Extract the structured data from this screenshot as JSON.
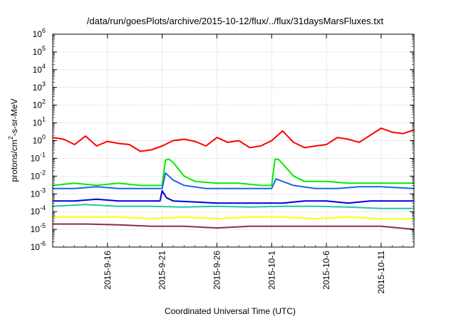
{
  "page": {
    "title": "/data/run/goesPlots/archive/2015-10-12/flux/../flux/31daysMarsFluxes.txt"
  },
  "chart_data": {
    "type": "line",
    "title": "/data/run/goesPlots/archive/2015-10-12/flux/../flux/31daysMarsFluxes.txt",
    "xlabel": "Coordinated Universal Time (UTC)",
    "ylabel": {
      "base": "protons/cm",
      "sup": "2",
      "rest": "-s-sr-MeV"
    },
    "y_scale": "log",
    "ylim": [
      1e-06,
      1000000.0
    ],
    "xlim": [
      "2015-09-11",
      "2015-10-14"
    ],
    "grid": true,
    "y_ticks": [
      {
        "value": 1e-06,
        "base": "10",
        "exp": "-6"
      },
      {
        "value": 1e-05,
        "base": "10",
        "exp": "-5"
      },
      {
        "value": 0.0001,
        "base": "10",
        "exp": "-4"
      },
      {
        "value": 0.001,
        "base": "10",
        "exp": "-3"
      },
      {
        "value": 0.01,
        "base": "10",
        "exp": "-2"
      },
      {
        "value": 0.1,
        "base": "10",
        "exp": "-1"
      },
      {
        "value": 1,
        "base": "10",
        "exp": "0"
      },
      {
        "value": 10,
        "base": "10",
        "exp": "1"
      },
      {
        "value": 100,
        "base": "10",
        "exp": "2"
      },
      {
        "value": 1000,
        "base": "10",
        "exp": "3"
      },
      {
        "value": 10000,
        "base": "10",
        "exp": "4"
      },
      {
        "value": 100000,
        "base": "10",
        "exp": "5"
      },
      {
        "value": 1000000,
        "base": "10",
        "exp": "6"
      }
    ],
    "x_ticks": [
      "2015-9-16",
      "2015-9-21",
      "2015-9-26",
      "2015-10-1",
      "2015-10-6",
      "2015-10-11"
    ],
    "series": [
      {
        "color": "#ff0000",
        "x": [
          "2015-09-11",
          "2015-09-12",
          "2015-09-13",
          "2015-09-14",
          "2015-09-15",
          "2015-09-16",
          "2015-09-17",
          "2015-09-18",
          "2015-09-19",
          "2015-09-20",
          "2015-09-21",
          "2015-09-22",
          "2015-09-23",
          "2015-09-24",
          "2015-09-25",
          "2015-09-26",
          "2015-09-27",
          "2015-09-28",
          "2015-09-29",
          "2015-09-30",
          "2015-10-01",
          "2015-10-02",
          "2015-10-03",
          "2015-10-04",
          "2015-10-05",
          "2015-10-06",
          "2015-10-07",
          "2015-10-08",
          "2015-10-09",
          "2015-10-10",
          "2015-10-11",
          "2015-10-12",
          "2015-10-13",
          "2015-10-14"
        ],
        "values": [
          1.5,
          1.2,
          0.6,
          1.8,
          0.5,
          0.9,
          0.7,
          0.6,
          0.25,
          0.3,
          0.5,
          1.0,
          1.2,
          0.9,
          0.5,
          1.5,
          0.8,
          1.0,
          0.4,
          0.5,
          1.0,
          3.5,
          0.8,
          0.4,
          0.5,
          0.6,
          1.5,
          1.2,
          0.8,
          2.0,
          5.0,
          3.0,
          2.5,
          4.0
        ]
      },
      {
        "color": "#00ee00",
        "x": [
          "2015-09-11",
          "2015-09-13",
          "2015-09-15",
          "2015-09-17",
          "2015-09-19",
          "2015-09-20",
          "2015-09-21",
          "2015-09-21.3",
          "2015-09-21.6",
          "2015-09-22",
          "2015-09-23",
          "2015-09-24",
          "2015-09-26",
          "2015-09-28",
          "2015-09-30",
          "2015-10-01",
          "2015-10-01.3",
          "2015-10-01.6",
          "2015-10-02",
          "2015-10-03",
          "2015-10-04",
          "2015-10-06",
          "2015-10-08",
          "2015-10-10",
          "2015-10-12",
          "2015-10-14"
        ],
        "values": [
          0.003,
          0.004,
          0.003,
          0.004,
          0.003,
          0.003,
          0.003,
          0.08,
          0.09,
          0.06,
          0.01,
          0.005,
          0.004,
          0.004,
          0.003,
          0.003,
          0.09,
          0.09,
          0.05,
          0.01,
          0.005,
          0.005,
          0.004,
          0.004,
          0.004,
          0.004
        ]
      },
      {
        "color": "#1e64e6",
        "x": [
          "2015-09-11",
          "2015-09-13",
          "2015-09-15",
          "2015-09-17",
          "2015-09-19",
          "2015-09-20",
          "2015-09-21",
          "2015-09-21.3",
          "2015-09-21.6",
          "2015-09-22",
          "2015-09-23",
          "2015-09-25",
          "2015-09-27",
          "2015-09-29",
          "2015-10-01",
          "2015-10-01.4",
          "2015-10-02",
          "2015-10-03",
          "2015-10-05",
          "2015-10-07",
          "2015-10-09",
          "2015-10-11",
          "2015-10-14"
        ],
        "values": [
          0.002,
          0.002,
          0.0025,
          0.002,
          0.002,
          0.002,
          0.002,
          0.015,
          0.01,
          0.006,
          0.003,
          0.002,
          0.002,
          0.002,
          0.002,
          0.007,
          0.005,
          0.003,
          0.002,
          0.002,
          0.0025,
          0.0025,
          0.002
        ]
      },
      {
        "color": "#0000dd",
        "x": [
          "2015-09-11",
          "2015-09-13",
          "2015-09-15",
          "2015-09-17",
          "2015-09-19",
          "2015-09-20.8",
          "2015-09-21",
          "2015-09-21.4",
          "2015-09-22",
          "2015-09-24",
          "2015-09-26",
          "2015-09-28",
          "2015-09-30",
          "2015-10-02",
          "2015-10-04",
          "2015-10-06",
          "2015-10-08",
          "2015-10-10",
          "2015-10-12",
          "2015-10-14"
        ],
        "values": [
          0.0004,
          0.0004,
          0.0005,
          0.0004,
          0.0004,
          0.0004,
          0.0015,
          0.0006,
          0.0004,
          0.00035,
          0.0003,
          0.0003,
          0.0003,
          0.0003,
          0.0004,
          0.0004,
          0.0003,
          0.0004,
          0.0004,
          0.0004
        ]
      },
      {
        "color": "#20c8a0",
        "x": [
          "2015-09-11",
          "2015-09-14",
          "2015-09-17",
          "2015-09-20",
          "2015-09-23",
          "2015-09-26",
          "2015-09-29",
          "2015-10-02",
          "2015-10-05",
          "2015-10-08",
          "2015-10-11",
          "2015-10-14"
        ],
        "values": [
          0.0002,
          0.00025,
          0.0002,
          0.0002,
          0.00018,
          0.0002,
          0.00018,
          0.0002,
          0.0002,
          0.00018,
          0.00015,
          0.00015
        ]
      },
      {
        "color": "#ffff00",
        "x": [
          "2015-09-11",
          "2015-09-14",
          "2015-09-17",
          "2015-09-20",
          "2015-09-23",
          "2015-09-26",
          "2015-09-29",
          "2015-10-02",
          "2015-10-05",
          "2015-10-08",
          "2015-10-11",
          "2015-10-14"
        ],
        "values": [
          5e-05,
          5e-05,
          5e-05,
          4e-05,
          5e-05,
          4e-05,
          5e-05,
          5e-05,
          4e-05,
          5e-05,
          4e-05,
          4e-05
        ]
      },
      {
        "color": "#8b2a5a",
        "x": [
          "2015-09-11",
          "2015-09-14",
          "2015-09-17",
          "2015-09-20",
          "2015-09-23",
          "2015-09-26",
          "2015-09-29",
          "2015-10-02",
          "2015-10-05",
          "2015-10-08",
          "2015-10-11",
          "2015-10-14"
        ],
        "values": [
          2e-05,
          2e-05,
          1.8e-05,
          1.5e-05,
          1.5e-05,
          1.2e-05,
          1.5e-05,
          1.5e-05,
          1.5e-05,
          1.5e-05,
          1.5e-05,
          1e-05
        ]
      }
    ]
  }
}
